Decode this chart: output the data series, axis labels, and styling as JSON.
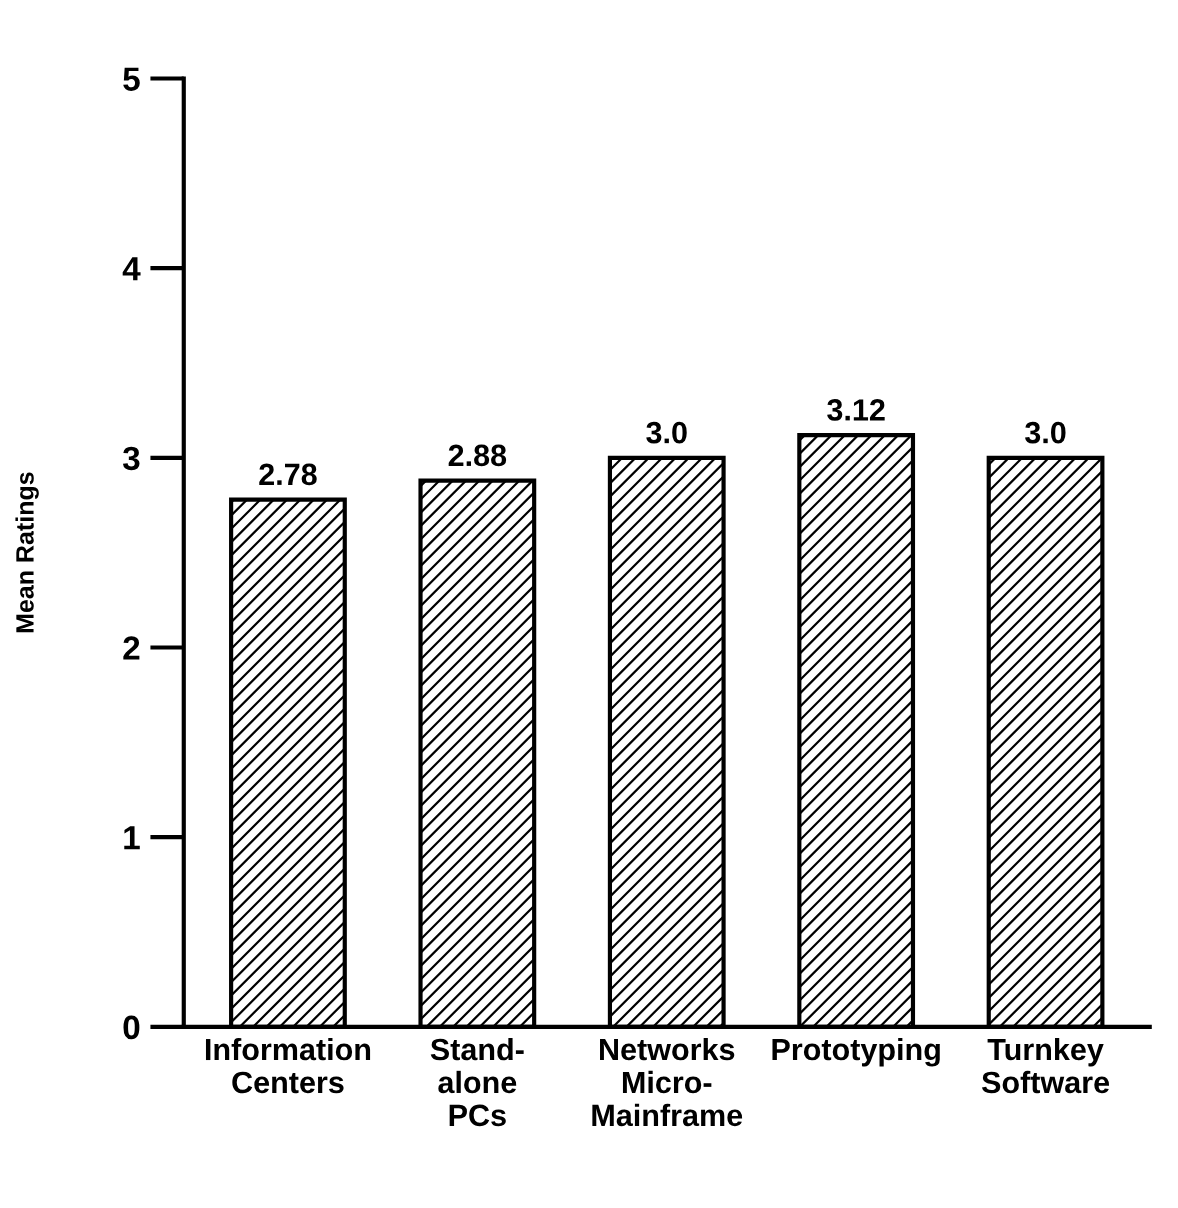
{
  "chart_data": {
    "type": "bar",
    "ylabel": "Mean Ratings",
    "categories": [
      "Information\nCenters",
      "Stand-\nalone\nPCs",
      "Networks\nMicro-\nMainframe",
      "Prototyping",
      "Turnkey\nSoftware"
    ],
    "values": [
      2.78,
      2.88,
      3.0,
      3.12,
      3.0
    ],
    "value_labels": [
      "2.78",
      "2.88",
      "3.0",
      "3.12",
      "3.0"
    ],
    "color": "#000000",
    "ylim": [
      0,
      5
    ],
    "yticks": [
      0,
      1,
      2,
      3,
      4,
      5
    ],
    "grid": false,
    "legend": false
  }
}
